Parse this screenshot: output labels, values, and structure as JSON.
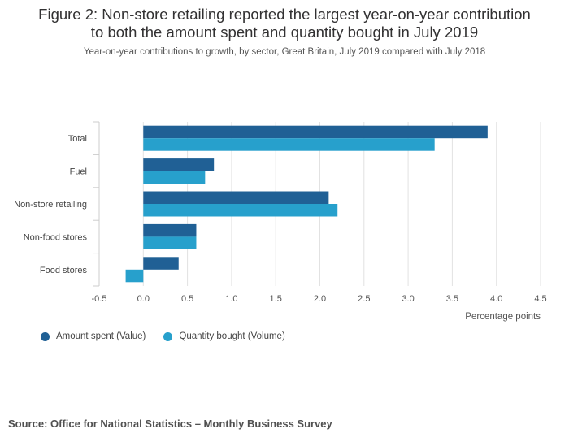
{
  "header": {
    "title_line1": "Figure 2: Non-store retailing reported the largest year-on-year contribution",
    "title_line2": "to both the amount spent and quantity bought in July 2019",
    "subtitle": "Year-on-year contributions to growth, by sector, Great Britain, July 2019 compared with July 2018"
  },
  "chart_data": {
    "type": "bar",
    "orientation": "horizontal",
    "title": "Figure 2: Non-store retailing reported the largest year-on-year contribution to both the amount spent and quantity bought in July 2019",
    "subtitle": "Year-on-year contributions to growth, by sector, Great Britain, July 2019 compared with July 2018",
    "categories": [
      "Total",
      "Fuel",
      "Non-store retailing",
      "Non-food stores",
      "Food stores"
    ],
    "series": [
      {
        "name": "Amount spent (Value)",
        "color": "#206095",
        "values": [
          3.9,
          0.8,
          2.1,
          0.6,
          0.4
        ]
      },
      {
        "name": "Quantity bought (Volume)",
        "color": "#27a0cc",
        "values": [
          3.3,
          0.7,
          2.2,
          0.6,
          -0.2
        ]
      }
    ],
    "xlabel": "Percentage points",
    "ylabel": "",
    "xlim": [
      -0.5,
      4.5
    ],
    "xticks": [
      "-0.5",
      "0.0",
      "0.5",
      "1.0",
      "1.5",
      "2.0",
      "2.5",
      "3.0",
      "3.5",
      "4.0",
      "4.5"
    ],
    "grid": true,
    "legend": "bottom-left"
  },
  "legend": {
    "items": [
      {
        "label": "Amount spent (Value)",
        "color": "#206095"
      },
      {
        "label": "Quantity bought (Volume)",
        "color": "#27a0cc"
      }
    ]
  },
  "footer": {
    "source": "Source: Office for National Statistics – Monthly Business Survey"
  }
}
